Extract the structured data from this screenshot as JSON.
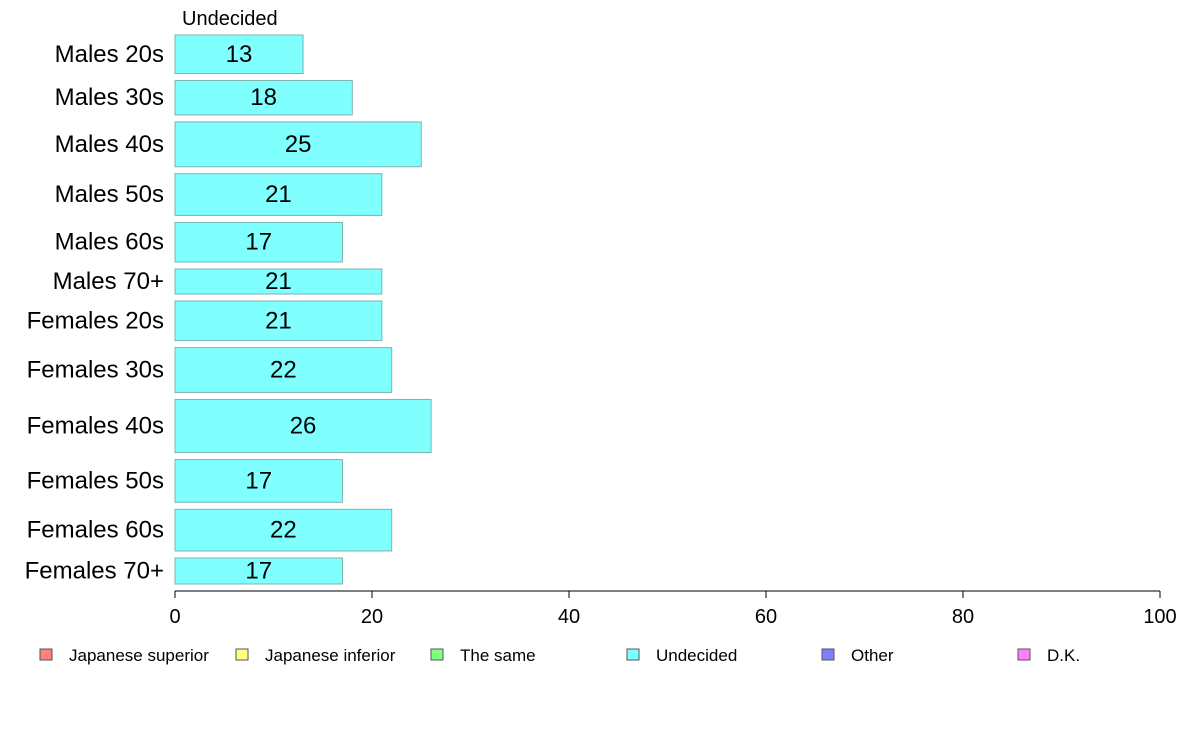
{
  "chart_data": {
    "type": "bar",
    "orientation": "horizontal",
    "title": "Undecided",
    "categories": [
      "Males 20s",
      "Males 30s",
      "Males 40s",
      "Males 50s",
      "Males 60s",
      "Males 70+",
      "Females 20s",
      "Females 30s",
      "Females 40s",
      "Females 50s",
      "Females 60s",
      "Females 70+"
    ],
    "series": [
      {
        "name": "Undecided",
        "values": [
          13,
          18,
          25,
          21,
          17,
          21,
          21,
          22,
          26,
          17,
          22,
          17
        ],
        "labels": [
          "13",
          "18",
          "25",
          "21",
          "17",
          "21",
          "21",
          "22",
          "26",
          "17",
          "22",
          "17"
        ]
      }
    ],
    "bar_thickness_weights": [
      3.7,
      3.3,
      4.3,
      4.0,
      3.8,
      2.4,
      3.8,
      4.3,
      5.1,
      4.1,
      4.0,
      2.5
    ],
    "xlim": [
      0,
      100
    ],
    "xticks": [
      0,
      20,
      40,
      60,
      80,
      100
    ],
    "xtick_labels": [
      "0",
      "20",
      "40",
      "60",
      "80",
      "100"
    ],
    "xlabel": "",
    "ylabel": "",
    "grid": false,
    "bar_color": "#80ffff",
    "bar_edge_color": "#7fb0b0",
    "legend": {
      "position": "bottom",
      "entries": [
        {
          "label": "Japanese superior",
          "color": "#ff8080"
        },
        {
          "label": "Japanese inferior",
          "color": "#ffff80"
        },
        {
          "label": "The same",
          "color": "#80ff80"
        },
        {
          "label": "Undecided",
          "color": "#80ffff"
        },
        {
          "label": "Other",
          "color": "#8080ff"
        },
        {
          "label": "D.K.",
          "color": "#ff80ff"
        }
      ]
    }
  }
}
